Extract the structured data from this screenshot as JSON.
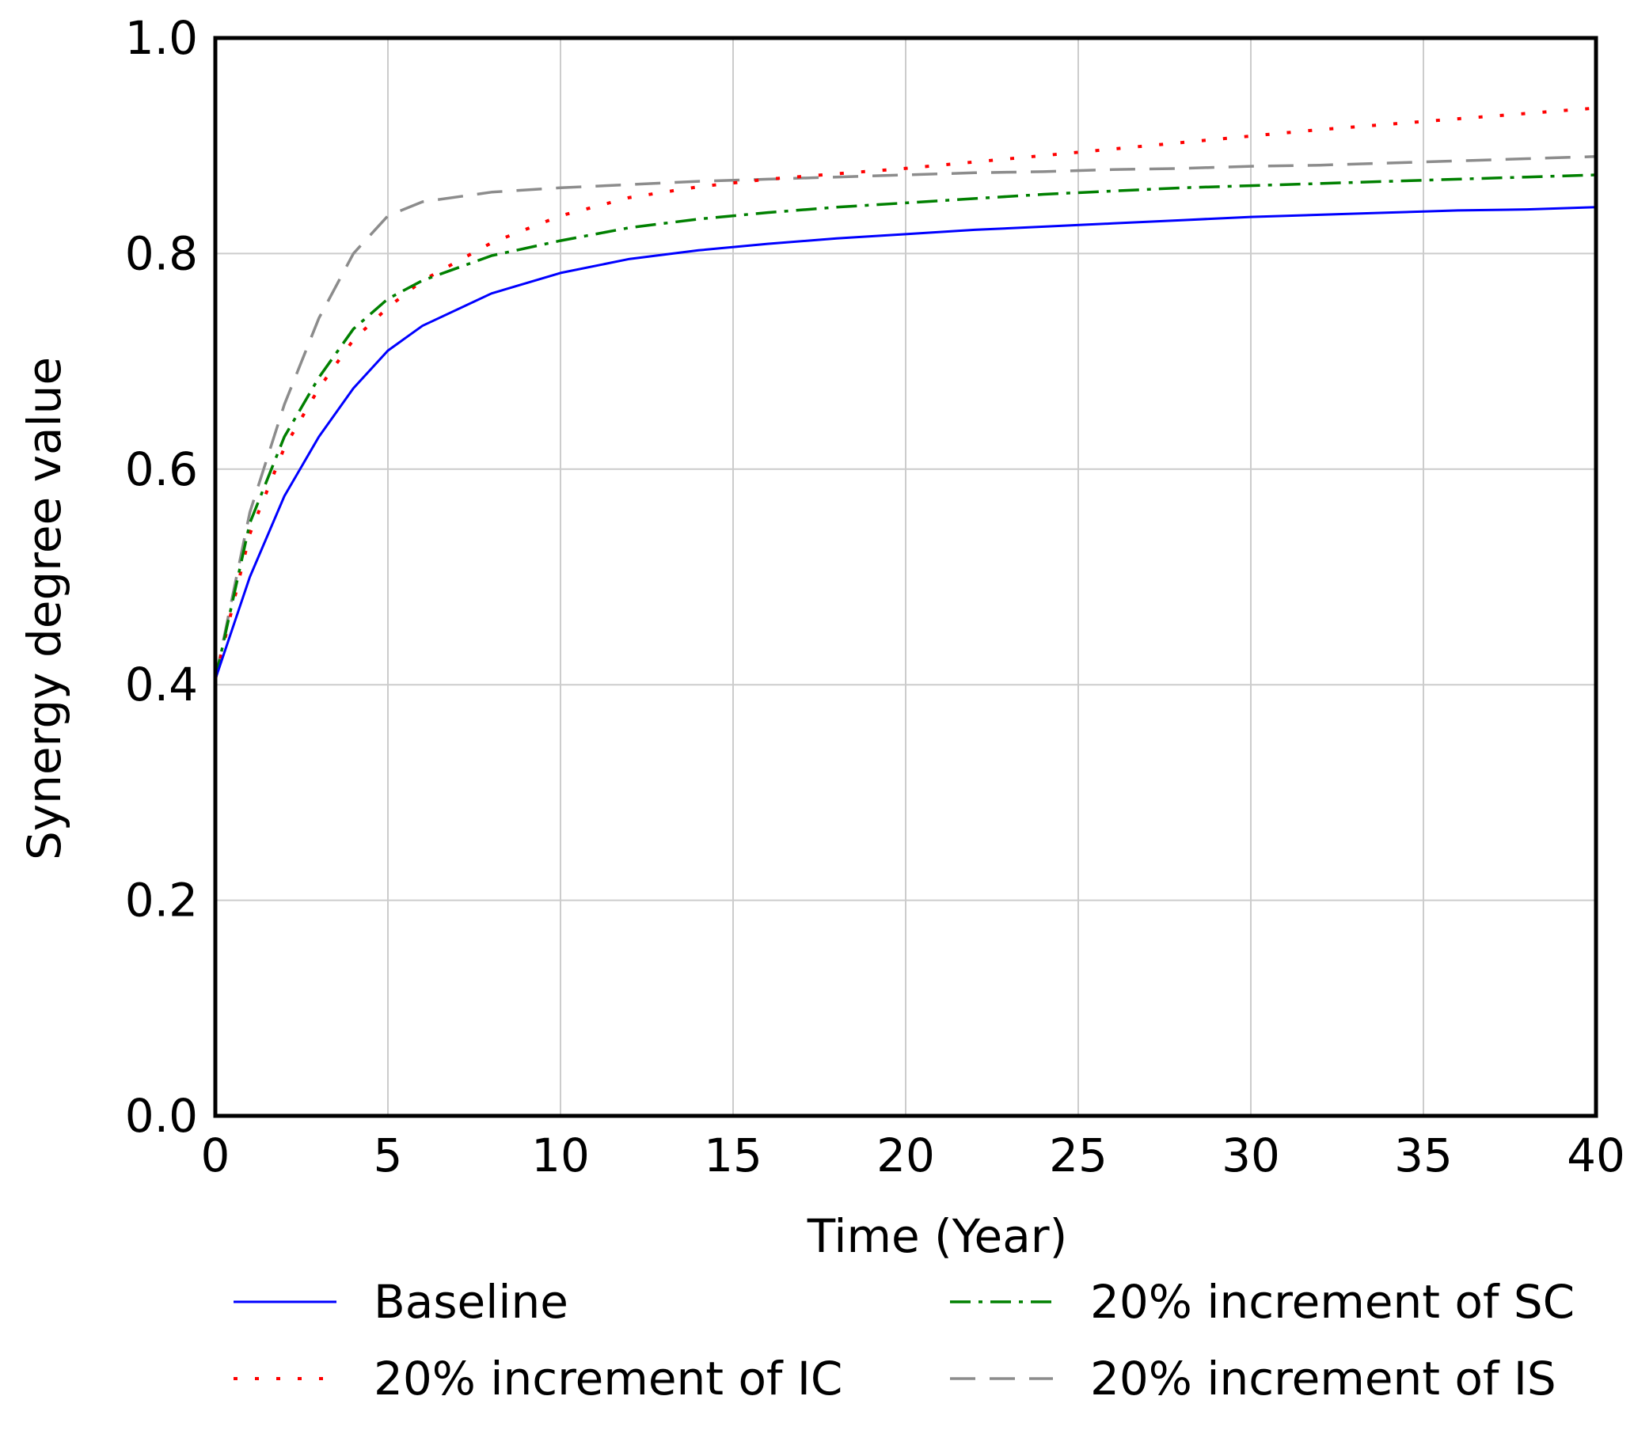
{
  "chart_data": {
    "type": "line",
    "title": "",
    "xlabel": "Time (Year)",
    "ylabel": "Synergy degree value",
    "xlim": [
      0,
      40
    ],
    "ylim": [
      0,
      1
    ],
    "xticks": [
      0,
      5,
      10,
      15,
      20,
      25,
      30,
      35,
      40
    ],
    "xtick_labels": [
      "0",
      "5",
      "10",
      "15",
      "20",
      "25",
      "30",
      "35",
      "40"
    ],
    "yticks": [
      0,
      0.2,
      0.4,
      0.6,
      0.8,
      1.0
    ],
    "ytick_labels": [
      "0.0",
      "0.2",
      "0.4",
      "0.6",
      "0.8",
      "1.0"
    ],
    "grid": true,
    "legend_position": "bottom",
    "series": [
      {
        "name": "Baseline",
        "color": "#0000ff",
        "style": "solid",
        "x": [
          0,
          1,
          2,
          3,
          4,
          5,
          6,
          8,
          10,
          12,
          14,
          16,
          18,
          20,
          22,
          24,
          26,
          28,
          30,
          32,
          34,
          36,
          38,
          40
        ],
        "y": [
          0.405,
          0.5,
          0.575,
          0.63,
          0.675,
          0.71,
          0.733,
          0.763,
          0.782,
          0.795,
          0.803,
          0.809,
          0.814,
          0.818,
          0.822,
          0.825,
          0.828,
          0.831,
          0.834,
          0.836,
          0.838,
          0.84,
          0.841,
          0.843
        ]
      },
      {
        "name": "20% increment of IC",
        "color": "#ff0000",
        "style": "dotted",
        "x": [
          0,
          1,
          2,
          3,
          4,
          5,
          6,
          8,
          10,
          12,
          14,
          16,
          18,
          20,
          22,
          24,
          26,
          28,
          30,
          32,
          34,
          36,
          38,
          40
        ],
        "y": [
          0.405,
          0.54,
          0.62,
          0.675,
          0.72,
          0.75,
          0.775,
          0.81,
          0.835,
          0.852,
          0.862,
          0.869,
          0.874,
          0.879,
          0.885,
          0.891,
          0.897,
          0.903,
          0.909,
          0.915,
          0.92,
          0.925,
          0.93,
          0.935
        ]
      },
      {
        "name": "20% increment of SC",
        "color": "#008000",
        "style": "dashdot",
        "x": [
          0,
          1,
          2,
          3,
          4,
          5,
          6,
          8,
          10,
          12,
          14,
          16,
          18,
          20,
          22,
          24,
          26,
          28,
          30,
          32,
          34,
          36,
          38,
          40
        ],
        "y": [
          0.405,
          0.55,
          0.63,
          0.685,
          0.73,
          0.758,
          0.775,
          0.798,
          0.812,
          0.824,
          0.832,
          0.838,
          0.843,
          0.847,
          0.851,
          0.855,
          0.858,
          0.861,
          0.863,
          0.865,
          0.867,
          0.869,
          0.871,
          0.873
        ]
      },
      {
        "name": "20% increment of IS",
        "color": "#8c8c8c",
        "style": "dashed",
        "x": [
          0,
          1,
          2,
          3,
          4,
          5,
          6,
          8,
          10,
          12,
          14,
          16,
          18,
          20,
          22,
          24,
          26,
          28,
          30,
          32,
          34,
          36,
          38,
          40
        ],
        "y": [
          0.405,
          0.56,
          0.66,
          0.74,
          0.8,
          0.835,
          0.848,
          0.857,
          0.861,
          0.864,
          0.867,
          0.869,
          0.871,
          0.873,
          0.875,
          0.876,
          0.878,
          0.879,
          0.881,
          0.882,
          0.884,
          0.886,
          0.888,
          0.89
        ]
      }
    ]
  }
}
